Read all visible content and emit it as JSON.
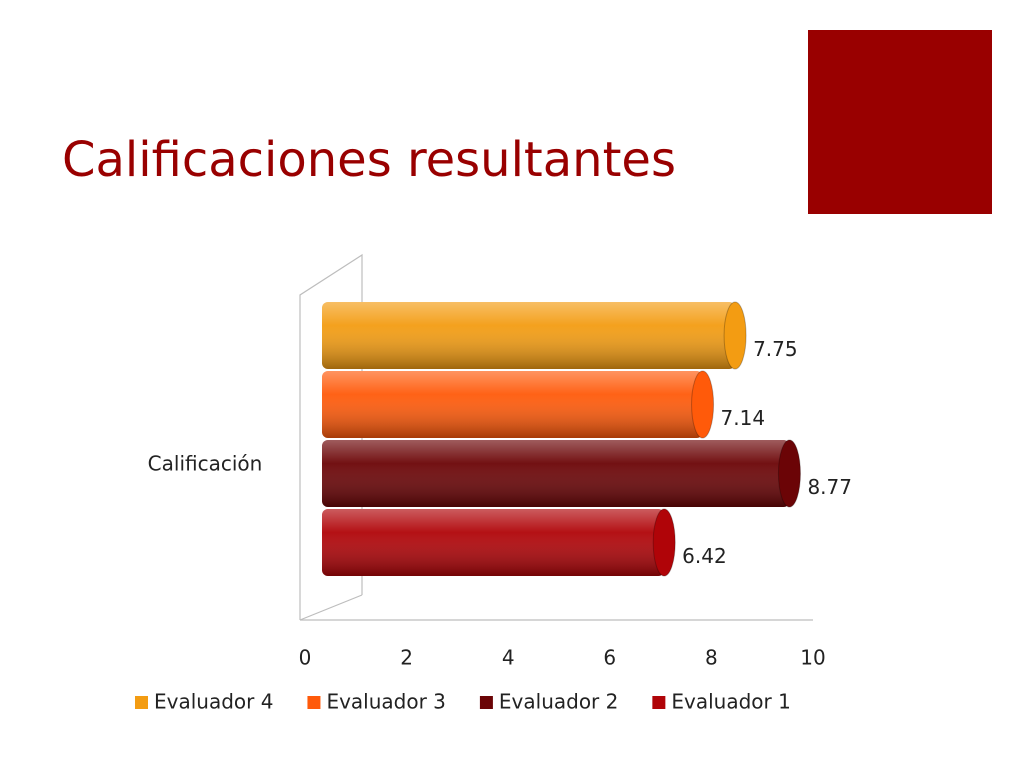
{
  "chart_data": {
    "type": "bar",
    "orientation": "horizontal",
    "style": "3d-cylinder",
    "title": "Calificaciones resultantes",
    "categories": [
      "Calificación"
    ],
    "series": [
      {
        "name": "Evaluador 4",
        "color": "#f39c12",
        "values": [
          7.75
        ]
      },
      {
        "name": "Evaluador 3",
        "color": "#ff5a0a",
        "values": [
          7.14
        ]
      },
      {
        "name": "Evaluador 2",
        "color": "#6b0406",
        "values": [
          8.77
        ]
      },
      {
        "name": "Evaluador 1",
        "color": "#b00408",
        "values": [
          6.42
        ]
      }
    ],
    "xlim": [
      0,
      10
    ],
    "xticks": [
      0,
      2,
      4,
      6,
      8,
      10
    ],
    "legend": "bottom",
    "data_labels": true
  }
}
